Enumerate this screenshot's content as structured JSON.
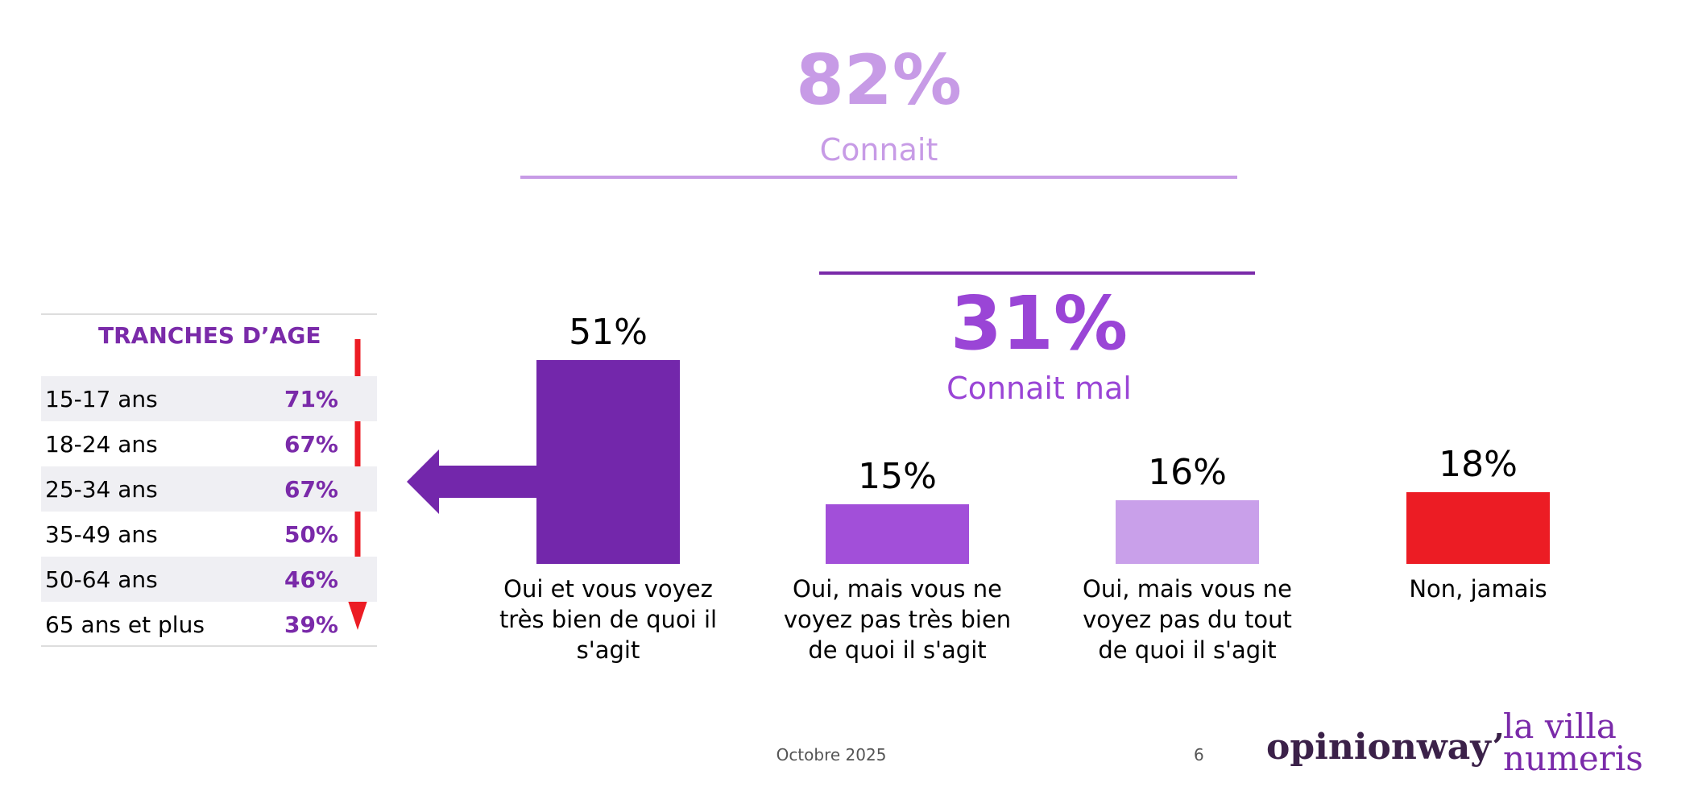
{
  "chart_data": {
    "type": "bar",
    "categories": [
      "Oui et vous voyez très bien de quoi il s'agit",
      "Oui, mais vous ne voyez pas très bien de quoi il s'agit",
      "Oui, mais vous ne voyez pas du tout de quoi il s'agit",
      "Non, jamais"
    ],
    "values": [
      51,
      15,
      16,
      18
    ],
    "value_labels": [
      "51%",
      "15%",
      "16%",
      "18%"
    ],
    "colors": [
      "#7327ab",
      "#a24fd9",
      "#c9a0ea",
      "#ec1c24"
    ]
  },
  "summary": [
    {
      "value_label": "82%",
      "label": "Connait",
      "color": "#c79be6"
    },
    {
      "value_label": "31%",
      "label": "Connait mal",
      "color": "#9a45d6"
    }
  ],
  "age_table": {
    "title": "TRANCHES D’AGE",
    "rows": [
      [
        "15-17 ans",
        "71%"
      ],
      [
        "18-24 ans",
        "67%"
      ],
      [
        "25-34 ans",
        "67%"
      ],
      [
        "35-49 ans",
        "50%"
      ],
      [
        "50-64 ans",
        "46%"
      ],
      [
        "65 ans et plus",
        "39%"
      ]
    ]
  },
  "footer": {
    "date": "Octobre 2025",
    "page": "6",
    "logo_left": "opinionway’",
    "logo_right": [
      "la villa",
      "numeris"
    ]
  }
}
